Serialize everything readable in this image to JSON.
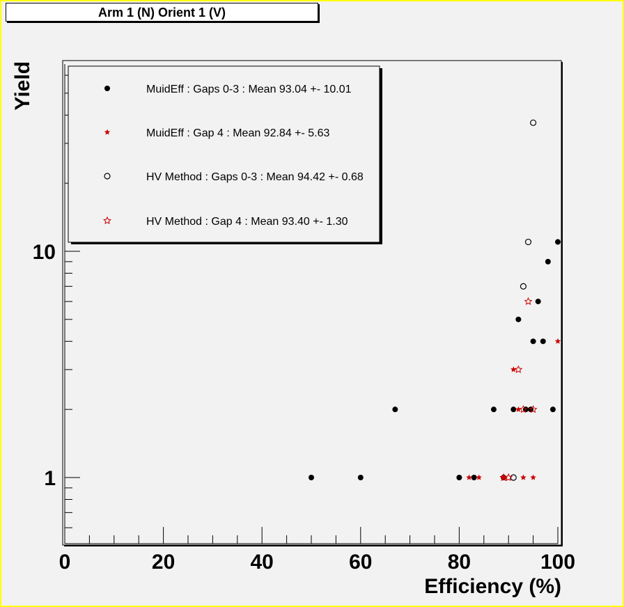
{
  "title": "Arm 1 (N) Orient 1 (V)",
  "chart_data": {
    "type": "scatter",
    "title": "Arm 1 (N) Orient 1 (V)",
    "xlabel": "Efficiency (%)",
    "ylabel": "Yield",
    "xlim": [
      0,
      100
    ],
    "ylim": [
      0.55,
      60
    ],
    "yscale": "log",
    "grid": false,
    "legend_position": "top-left",
    "x_ticks": [
      0,
      20,
      40,
      60,
      80,
      100
    ],
    "y_ticks": [
      1,
      10
    ],
    "series": [
      {
        "name": "MuidEff : Gaps 0-3 : Mean 93.04 +- 10.01",
        "marker": "filled-circle",
        "color": "#000000",
        "points": [
          [
            50,
            1
          ],
          [
            60,
            1
          ],
          [
            67,
            2
          ],
          [
            80,
            1
          ],
          [
            83,
            1
          ],
          [
            87,
            2
          ],
          [
            89,
            1
          ],
          [
            91,
            2
          ],
          [
            92,
            5
          ],
          [
            93.5,
            2
          ],
          [
            94.5,
            2
          ],
          [
            95,
            4
          ],
          [
            96,
            6
          ],
          [
            97,
            4
          ],
          [
            98,
            9
          ],
          [
            99,
            2
          ],
          [
            100,
            11
          ]
        ]
      },
      {
        "name": "MuidEff : Gap    4 : Mean 92.84 +- 5.63",
        "marker": "star",
        "color": "#cc0000",
        "points": [
          [
            82,
            1
          ],
          [
            84,
            1
          ],
          [
            89,
            1
          ],
          [
            91,
            3
          ],
          [
            92,
            2
          ],
          [
            93,
            1
          ],
          [
            95,
            1
          ],
          [
            100,
            4
          ]
        ]
      },
      {
        "name": "HV Method : Gaps 0-3 : Mean 94.42 +- 0.68",
        "marker": "open-circle",
        "color": "#000000",
        "points": [
          [
            91,
            1
          ],
          [
            93,
            7
          ],
          [
            94,
            11
          ],
          [
            95,
            37
          ]
        ]
      },
      {
        "name": "HV Method : Gap    4 : Mean 93.40 +- 1.30",
        "marker": "open-star",
        "color": "#cc0000",
        "points": [
          [
            89,
            1
          ],
          [
            90,
            1
          ],
          [
            92,
            3
          ],
          [
            93,
            2
          ],
          [
            95,
            2
          ],
          [
            94,
            6
          ]
        ]
      }
    ]
  }
}
